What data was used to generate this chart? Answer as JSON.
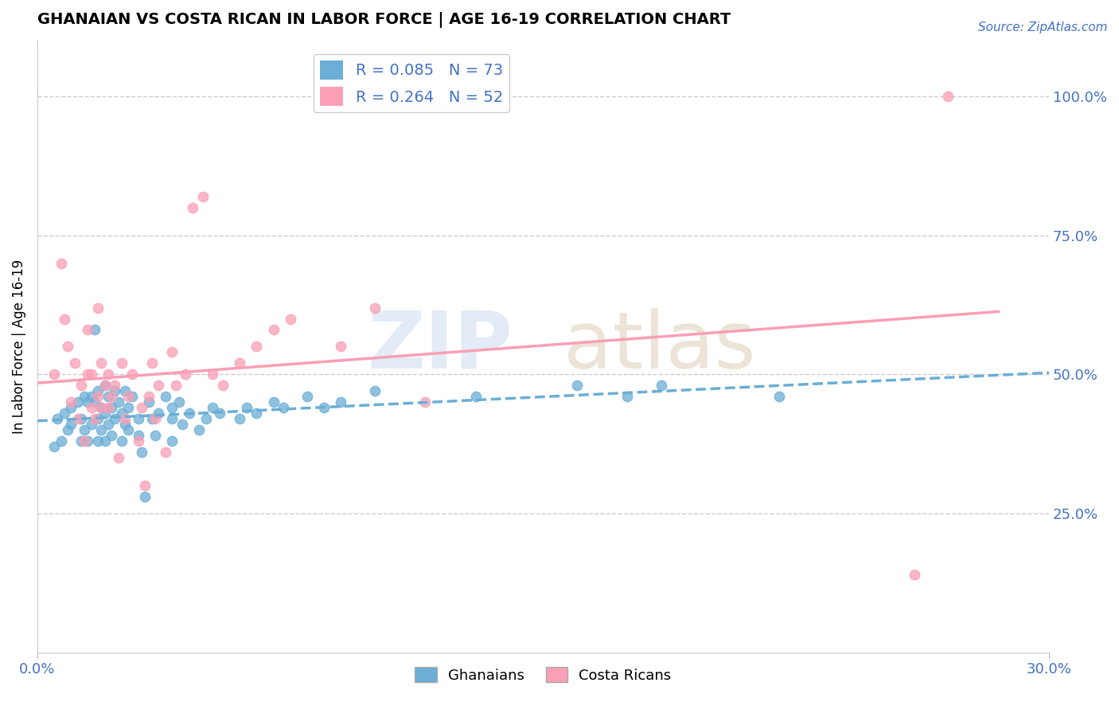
{
  "title": "GHANAIAN VS COSTA RICAN IN LABOR FORCE | AGE 16-19 CORRELATION CHART",
  "source_text": "Source: ZipAtlas.com",
  "ylabel": "In Labor Force | Age 16-19",
  "xlim": [
    0.0,
    0.3
  ],
  "ylim": [
    0.0,
    1.1
  ],
  "ytick_right_vals": [
    0.25,
    0.5,
    0.75,
    1.0
  ],
  "color_blue": "#6baed6",
  "color_pink": "#fa9fb5",
  "R_blue": 0.085,
  "N_blue": 73,
  "R_pink": 0.264,
  "N_pink": 52,
  "legend_label_blue": "Ghanaians",
  "legend_label_pink": "Costa Ricans",
  "watermark_zip": "ZIP",
  "watermark_atlas": "atlas",
  "blue_scatter_x": [
    0.005,
    0.006,
    0.007,
    0.008,
    0.009,
    0.01,
    0.01,
    0.012,
    0.013,
    0.013,
    0.014,
    0.014,
    0.015,
    0.015,
    0.016,
    0.016,
    0.017,
    0.017,
    0.018,
    0.018,
    0.018,
    0.019,
    0.019,
    0.02,
    0.02,
    0.02,
    0.021,
    0.021,
    0.022,
    0.022,
    0.023,
    0.023,
    0.024,
    0.025,
    0.025,
    0.026,
    0.026,
    0.027,
    0.027,
    0.028,
    0.03,
    0.03,
    0.031,
    0.032,
    0.033,
    0.034,
    0.035,
    0.036,
    0.038,
    0.04,
    0.04,
    0.04,
    0.042,
    0.043,
    0.045,
    0.048,
    0.05,
    0.052,
    0.054,
    0.06,
    0.062,
    0.065,
    0.07,
    0.073,
    0.08,
    0.085,
    0.09,
    0.1,
    0.13,
    0.16,
    0.175,
    0.185,
    0.22
  ],
  "blue_scatter_y": [
    0.37,
    0.42,
    0.38,
    0.43,
    0.4,
    0.44,
    0.41,
    0.45,
    0.38,
    0.42,
    0.46,
    0.4,
    0.45,
    0.38,
    0.46,
    0.41,
    0.58,
    0.45,
    0.42,
    0.38,
    0.47,
    0.44,
    0.4,
    0.48,
    0.43,
    0.38,
    0.46,
    0.41,
    0.44,
    0.39,
    0.47,
    0.42,
    0.45,
    0.43,
    0.38,
    0.47,
    0.41,
    0.44,
    0.4,
    0.46,
    0.42,
    0.39,
    0.36,
    0.28,
    0.45,
    0.42,
    0.39,
    0.43,
    0.46,
    0.44,
    0.38,
    0.42,
    0.45,
    0.41,
    0.43,
    0.4,
    0.42,
    0.44,
    0.43,
    0.42,
    0.44,
    0.43,
    0.45,
    0.44,
    0.46,
    0.44,
    0.45,
    0.47,
    0.46,
    0.48,
    0.46,
    0.48,
    0.46
  ],
  "pink_scatter_x": [
    0.005,
    0.007,
    0.008,
    0.009,
    0.01,
    0.011,
    0.012,
    0.013,
    0.014,
    0.015,
    0.015,
    0.016,
    0.016,
    0.017,
    0.018,
    0.018,
    0.019,
    0.019,
    0.02,
    0.021,
    0.021,
    0.022,
    0.023,
    0.024,
    0.025,
    0.026,
    0.027,
    0.028,
    0.03,
    0.031,
    0.032,
    0.033,
    0.034,
    0.035,
    0.036,
    0.038,
    0.04,
    0.041,
    0.044,
    0.046,
    0.049,
    0.052,
    0.055,
    0.06,
    0.065,
    0.07,
    0.075,
    0.09,
    0.1,
    0.115,
    0.26,
    0.27
  ],
  "pink_scatter_y": [
    0.5,
    0.7,
    0.6,
    0.55,
    0.45,
    0.52,
    0.42,
    0.48,
    0.38,
    0.5,
    0.58,
    0.44,
    0.5,
    0.42,
    0.62,
    0.46,
    0.44,
    0.52,
    0.48,
    0.5,
    0.44,
    0.46,
    0.48,
    0.35,
    0.52,
    0.42,
    0.46,
    0.5,
    0.38,
    0.44,
    0.3,
    0.46,
    0.52,
    0.42,
    0.48,
    0.36,
    0.54,
    0.48,
    0.5,
    0.8,
    0.82,
    0.5,
    0.48,
    0.52,
    0.55,
    0.58,
    0.6,
    0.55,
    0.62,
    0.45,
    0.14,
    1.0
  ]
}
